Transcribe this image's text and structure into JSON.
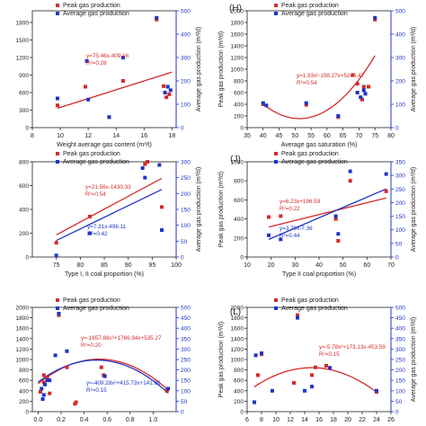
{
  "panels": [
    {
      "id": "G",
      "letter": "",
      "xlabel": "Weight average gas content (m³/t)",
      "lylabel": "",
      "rylabel": "Average gas production (m³/d)",
      "legend": [
        "Peak gas production",
        "Average gas production"
      ],
      "xticks": [
        "8",
        "10",
        "12",
        "14",
        "16",
        "18"
      ],
      "lyticks": [
        "0",
        "300",
        "600",
        "900",
        "1200",
        "1500",
        "1800"
      ],
      "ryticks": [
        "0",
        "100",
        "200",
        "300",
        "400",
        "500"
      ],
      "eq_red": "y=75.46x-409.16",
      "r2_red": "R²=0.28",
      "eq_blue": "",
      "r2_blue": ""
    },
    {
      "id": "H",
      "letter": "(H)",
      "xlabel": "Average gas saturation (%)",
      "lylabel": "Peak gas production (m³/d)",
      "rylabel": "Average gas production (m³/d)",
      "legend": [
        "Peak gas production",
        "Average gas production"
      ],
      "xticks": [
        "35",
        "40",
        "45",
        "50",
        "55",
        "60",
        "65",
        "70",
        "75",
        "80"
      ],
      "lyticks": [
        "0",
        "200",
        "400",
        "600",
        "800",
        "1000",
        "1200",
        "1400",
        "1600",
        "1800",
        "2000"
      ],
      "ryticks": [
        "0",
        "100",
        "200",
        "300",
        "400",
        "500"
      ],
      "eq_red": "y=1.93x²-198.27x+5246.47",
      "r2_red": "R²=0.54",
      "eq_blue": "",
      "r2_blue": ""
    },
    {
      "id": "I",
      "letter": "",
      "xlabel": "Type I, II coal proportion (%)",
      "lylabel": "",
      "rylabel": "Average gas production (m³/d)",
      "legend": [
        "Peak gas production",
        "Average gas production"
      ],
      "xticks": [
        "75",
        "80",
        "85",
        "90",
        "95",
        "100"
      ],
      "lyticks": [
        "0",
        "200",
        "400",
        "600",
        "800"
      ],
      "ryticks": [
        "0",
        "50",
        "100",
        "150",
        "200",
        "250",
        "300"
      ],
      "eq_red": "y=21.56x-1430.33",
      "r2_red": "R²=0.54",
      "eq_blue": "y=7.31x-496.11",
      "r2_blue": "R²=0.42"
    },
    {
      "id": "J",
      "letter": "(J)",
      "xlabel": "Type II coal proportion (%)",
      "lylabel": "Peak gas production (m³/d)",
      "rylabel": "Average gas production (m³/d)",
      "legend": [
        "Peak gas production",
        "Average gas production"
      ],
      "xticks": [
        "10",
        "20",
        "30",
        "40",
        "50",
        "60",
        "70"
      ],
      "lyticks": [
        "0",
        "200",
        "400",
        "600",
        "800",
        "1000"
      ],
      "ryticks": [
        "0",
        "50",
        "100",
        "150",
        "200",
        "250",
        "300",
        "350"
      ],
      "eq_red": "y=6.23x+196.59",
      "r2_red": "R²=0.22",
      "eq_blue": "y=3.79x-7.36",
      "r2_blue": "R²=0.44"
    },
    {
      "id": "K",
      "letter": "",
      "xlabel": "Fault fractural dimension value",
      "lylabel": "",
      "rylabel": "",
      "legend": [
        "Peak gas production",
        "Average gas production"
      ],
      "xticks": [
        "0.0",
        "0.2",
        "0.4",
        "0.6",
        "0.8",
        "1.0"
      ],
      "lyticks": [
        "0",
        "200",
        "400",
        "600",
        "800",
        "1000",
        "1200",
        "1400",
        "1600",
        "1800",
        "2000"
      ],
      "ryticks": [
        "0",
        "50",
        "100",
        "150",
        "200",
        "250",
        "300",
        "350",
        "400",
        "450",
        "500"
      ],
      "eq_red": "y=-1657.88x²+1766.94x+535.27",
      "r2_red": "R²=0.20",
      "eq_blue": "y=-409.28x²+415.73x+141.66",
      "r2_blue": "R²=0.15"
    },
    {
      "id": "L",
      "letter": "(L)",
      "xlabel": "Structural condition",
      "lylabel": "Peak gas production (m³/d)",
      "rylabel": "Average gas production (m³/d)",
      "legend": [
        "Peak gas production",
        "Average gas production"
      ],
      "xticks": [
        "6",
        "8",
        "10",
        "12",
        "14",
        "16",
        "18",
        "20",
        "22",
        "24",
        "26"
      ],
      "lyticks": [
        "0",
        "200",
        "400",
        "600",
        "800",
        "1000",
        "1200",
        "1400",
        "1600",
        "1800",
        "2000"
      ],
      "ryticks": [
        "0",
        "50",
        "100",
        "150",
        "200",
        "250",
        "300",
        "350",
        "400",
        "450",
        "500"
      ],
      "eq_red": "y=-5.78x²+173.13x-453.59",
      "r2_red": "R²=0.15",
      "eq_blue": "",
      "r2_blue": ""
    }
  ],
  "colors": {
    "peak": "#d42a2a",
    "average": "#1f35c4",
    "axis_left": "#222222",
    "axis_right": "#1f35c4"
  },
  "chart_data": [
    {
      "type": "scatter",
      "panel": "G",
      "xlabel": "Weight average gas content (m³/t)",
      "ylabel": "",
      "y2label": "Average gas production (m³/d)",
      "xlim": [
        8,
        18.3
      ],
      "ylim": [
        0,
        2000
      ],
      "y2lim": [
        0,
        500
      ],
      "series": [
        {
          "name": "Peak gas production",
          "axis": "left",
          "points": [
            [
              9.8,
              380
            ],
            [
              11.8,
              700
            ],
            [
              13.5,
              180
            ],
            [
              14.5,
              800
            ],
            [
              16.9,
              1850
            ],
            [
              17.4,
              710
            ],
            [
              17.6,
              520
            ],
            [
              17.8,
              570
            ]
          ]
        },
        {
          "name": "Average gas production",
          "axis": "right",
          "points": [
            [
              9.8,
              125
            ],
            [
              11.9,
              285
            ],
            [
              12.0,
              120
            ],
            [
              13.5,
              45
            ],
            [
              14.5,
              300
            ],
            [
              16.9,
              470
            ],
            [
              17.5,
              150
            ],
            [
              17.7,
              175
            ],
            [
              17.9,
              160
            ]
          ]
        }
      ],
      "fits": [
        {
          "series": "Peak gas production",
          "kind": "linear",
          "coef": [
            75.46,
            -409.16
          ],
          "xrange": [
            9.8,
            18
          ]
        }
      ]
    },
    {
      "type": "scatter",
      "panel": "H",
      "xlabel": "Average gas saturation (%)",
      "ylabel": "Peak gas production (m³/d)",
      "y2label": "Average gas production (m³/d)",
      "xlim": [
        35,
        80
      ],
      "ylim": [
        0,
        2000
      ],
      "y2lim": [
        0,
        500
      ],
      "series": [
        {
          "name": "Peak gas production",
          "axis": "left",
          "points": [
            [
              40,
              400
            ],
            [
              53.5,
              390
            ],
            [
              63.5,
              180
            ],
            [
              68,
              900
            ],
            [
              69.5,
              750
            ],
            [
              71,
              480
            ],
            [
              71.5,
              700
            ],
            [
              73,
              700
            ],
            [
              75,
              1850
            ]
          ]
        },
        {
          "name": "Average gas production",
          "axis": "right",
          "points": [
            [
              40,
              105
            ],
            [
              41,
              95
            ],
            [
              53.5,
              105
            ],
            [
              63.5,
              50
            ],
            [
              69.5,
              150
            ],
            [
              70.5,
              130
            ],
            [
              71.5,
              160
            ],
            [
              72,
              145
            ],
            [
              75,
              470
            ]
          ]
        }
      ],
      "fits": [
        {
          "series": "Peak gas production",
          "kind": "quadratic",
          "coef": [
            1.93,
            -198.27,
            5246.47
          ],
          "xrange": [
            40,
            75
          ]
        }
      ]
    },
    {
      "type": "scatter",
      "panel": "I",
      "xlabel": "Type I, II coal proportion (%)",
      "ylabel": "",
      "y2label": "Average gas production (m³/d)",
      "xlim": [
        70,
        100
      ],
      "ylim": [
        0,
        800
      ],
      "y2lim": [
        0,
        300
      ],
      "series": [
        {
          "name": "Peak gas production",
          "axis": "left",
          "points": [
            [
              75,
              120
            ],
            [
              82,
              340
            ],
            [
              93.5,
              780
            ],
            [
              94,
              800
            ],
            [
              97,
              420
            ]
          ]
        },
        {
          "name": "Average gas production",
          "axis": "right",
          "points": [
            [
              75,
              5
            ],
            [
              82,
              75
            ],
            [
              93,
              280
            ],
            [
              93.5,
              250
            ],
            [
              96.5,
              290
            ],
            [
              97,
              85
            ]
          ]
        }
      ],
      "fits": [
        {
          "series": "Peak gas production",
          "kind": "linear",
          "coef": [
            21.56,
            -1430.33
          ],
          "xrange": [
            75,
            97
          ]
        },
        {
          "series": "Average gas production",
          "kind": "linear",
          "coef": [
            7.31,
            -496.11
          ],
          "xrange": [
            75,
            97
          ]
        }
      ]
    },
    {
      "type": "scatter",
      "panel": "J",
      "xlabel": "Type II coal proportion (%)",
      "ylabel": "Peak gas production (m³/d)",
      "y2label": "Average gas production (m³/d)",
      "xlim": [
        10,
        70
      ],
      "ylim": [
        0,
        1000
      ],
      "y2lim": [
        0,
        350
      ],
      "series": [
        {
          "name": "Peak gas production",
          "axis": "left",
          "points": [
            [
              19,
              420
            ],
            [
              24,
              430
            ],
            [
              47,
              400
            ],
            [
              48,
              170
            ],
            [
              53,
              800
            ],
            [
              68,
              690
            ]
          ]
        },
        {
          "name": "Average gas production",
          "axis": "right",
          "points": [
            [
              19,
              80
            ],
            [
              24,
              65
            ],
            [
              47,
              150
            ],
            [
              48,
              85
            ],
            [
              53,
              315
            ],
            [
              68,
              305
            ]
          ]
        }
      ],
      "fits": [
        {
          "series": "Peak gas production",
          "kind": "linear",
          "coef": [
            6.23,
            196.59
          ],
          "xrange": [
            19,
            68
          ]
        },
        {
          "series": "Average gas production",
          "kind": "linear",
          "coef": [
            3.79,
            -7.36
          ],
          "xrange": [
            19,
            68
          ]
        }
      ]
    },
    {
      "type": "scatter",
      "panel": "K",
      "xlabel": "Fault fractural dimension value",
      "ylabel": "",
      "y2label": "",
      "xlim": [
        -0.05,
        1.2
      ],
      "ylim": [
        0,
        2000
      ],
      "y2lim": [
        0,
        500
      ],
      "series": [
        {
          "name": "Peak gas production",
          "axis": "left",
          "points": [
            [
              0.02,
              380
            ],
            [
              0.05,
              560
            ],
            [
              0.05,
              700
            ],
            [
              0.08,
              650
            ],
            [
              0.1,
              350
            ],
            [
              0.18,
              1850
            ],
            [
              0.25,
              850
            ],
            [
              0.32,
              150
            ],
            [
              0.33,
              180
            ],
            [
              0.55,
              850
            ],
            [
              0.57,
              700
            ],
            [
              1.12,
              400
            ]
          ]
        },
        {
          "name": "Average gas production",
          "axis": "right",
          "points": [
            [
              0.03,
              110
            ],
            [
              0.04,
              60
            ],
            [
              0.05,
              80
            ],
            [
              0.06,
              130
            ],
            [
              0.08,
              150
            ],
            [
              0.1,
              150
            ],
            [
              0.15,
              270
            ],
            [
              0.18,
              470
            ],
            [
              0.25,
              290
            ],
            [
              0.58,
              170
            ],
            [
              1.13,
              110
            ]
          ]
        }
      ],
      "fits": [
        {
          "series": "Peak gas production",
          "kind": "quadratic",
          "coef": [
            -1657.88,
            1766.94,
            535.27
          ],
          "xrange": [
            0,
            1.13
          ]
        },
        {
          "series": "Average gas production",
          "kind": "quadratic",
          "coef": [
            -409.28,
            415.73,
            141.66
          ],
          "xrange": [
            0,
            1.13
          ]
        }
      ]
    },
    {
      "type": "scatter",
      "panel": "L",
      "xlabel": "Structural condition",
      "ylabel": "Peak gas production (m³/d)",
      "y2label": "Average gas production (m³/d)",
      "xlim": [
        6,
        26
      ],
      "ylim": [
        0,
        2000
      ],
      "y2lim": [
        0,
        500
      ],
      "series": [
        {
          "name": "Peak gas production",
          "axis": "left",
          "points": [
            [
              7,
              180
            ],
            [
              7.5,
              700
            ],
            [
              8,
              1100
            ],
            [
              12.5,
              550
            ],
            [
              13,
              1850
            ],
            [
              15,
              700
            ],
            [
              15.5,
              850
            ],
            [
              17,
              880
            ],
            [
              24,
              380
            ]
          ]
        },
        {
          "name": "Average gas production",
          "axis": "right",
          "points": [
            [
              7,
              45
            ],
            [
              7.2,
              270
            ],
            [
              8,
              280
            ],
            [
              9.5,
              100
            ],
            [
              13,
              450
            ],
            [
              14,
              100
            ],
            [
              15,
              120
            ],
            [
              17.5,
              210
            ],
            [
              24,
              100
            ]
          ]
        }
      ],
      "fits": [
        {
          "series": "Peak gas production",
          "kind": "quadratic",
          "coef": [
            -5.78,
            173.13,
            -453.59
          ],
          "xrange": [
            7,
            24
          ]
        }
      ]
    }
  ]
}
